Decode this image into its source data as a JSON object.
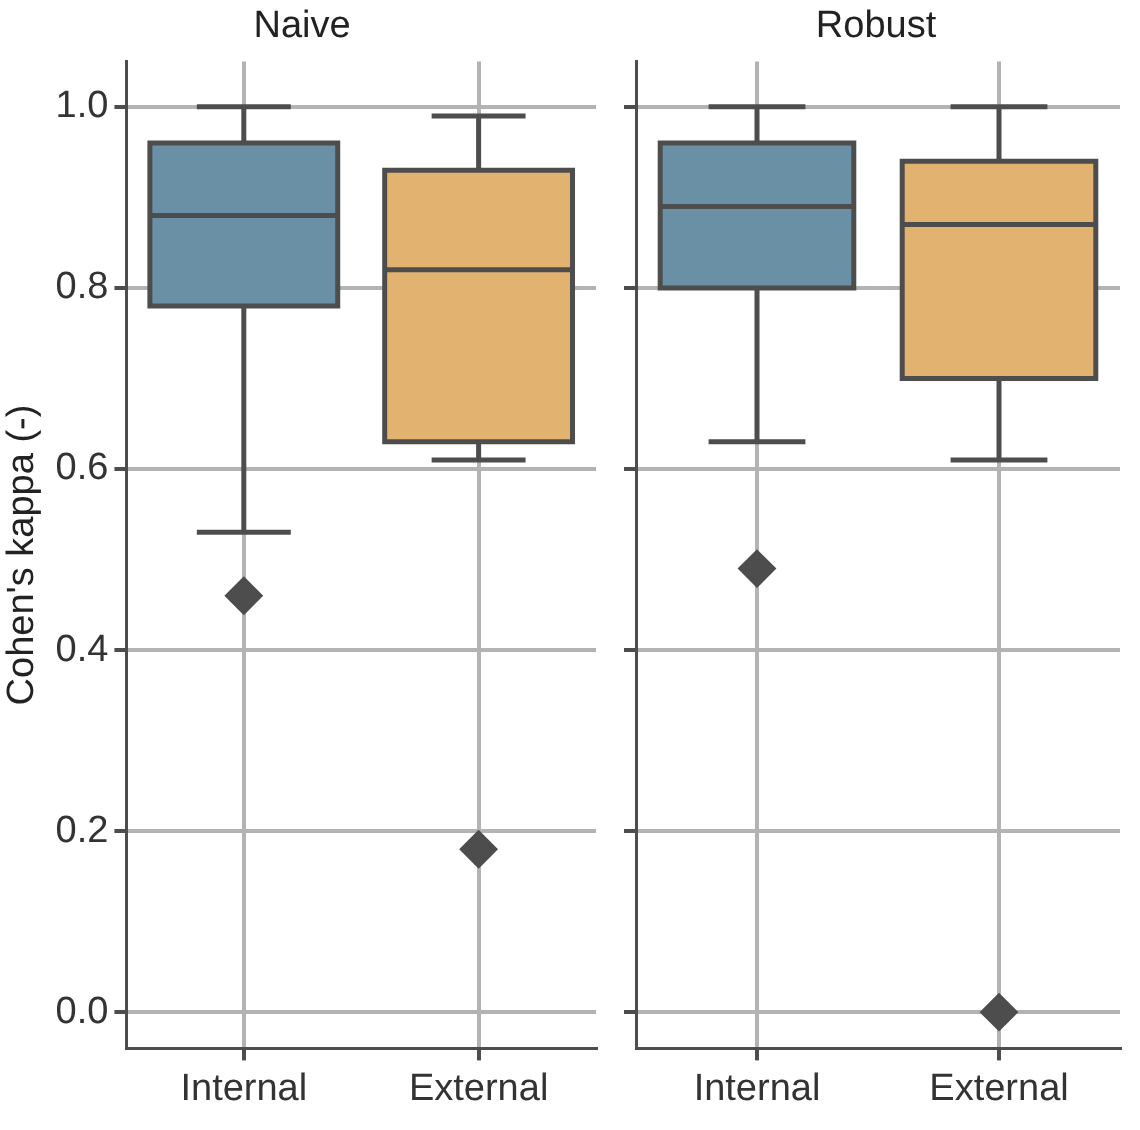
{
  "chart_data": [
    {
      "type": "box",
      "title": "Naive",
      "ylabel": "Cohen's kappa (-)",
      "categories": [
        "Internal",
        "External"
      ],
      "colors": [
        "#6a90a6",
        "#e2b271"
      ],
      "marker": "diamond",
      "grid": true,
      "ylim": [
        -0.04,
        1.05
      ],
      "yticks": [
        {
          "value": 0,
          "label": "0.0"
        },
        0.2,
        0.4,
        0.6,
        0.8,
        {
          "value": 1,
          "label": "1.0"
        }
      ],
      "boxes": [
        {
          "low": 0.53,
          "q1": 0.78,
          "median": 0.88,
          "q3": 0.96,
          "high": 1.0,
          "outliers": [
            0.46
          ]
        },
        {
          "low": 0.61,
          "q1": 0.63,
          "median": 0.82,
          "q3": 0.93,
          "high": 0.99,
          "outliers": [
            0.18
          ]
        }
      ]
    },
    {
      "type": "box",
      "title": "Robust",
      "categories": [
        "Internal",
        "External"
      ],
      "colors": [
        "#6a90a6",
        "#e2b271"
      ],
      "marker": "diamond",
      "grid": true,
      "tick_labels": "x",
      "ylim": [
        -0.04,
        1.05
      ],
      "yticks": [
        0,
        0.2,
        0.4,
        0.6,
        0.8,
        1
      ],
      "boxes": [
        {
          "low": 0.63,
          "q1": 0.8,
          "median": 0.89,
          "q3": 0.96,
          "high": 1.0,
          "outliers": [
            0.49
          ]
        },
        {
          "low": 0.61,
          "q1": 0.7,
          "median": 0.87,
          "q3": 0.94,
          "high": 1.0,
          "outliers": [
            0
          ]
        }
      ]
    }
  ]
}
